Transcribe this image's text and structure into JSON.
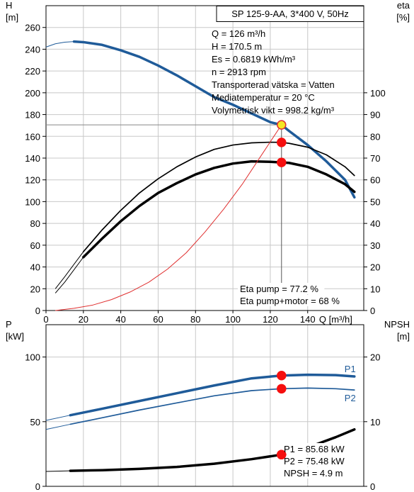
{
  "chart_data": [
    {
      "type": "line",
      "title": "SP 125-9-AA, 3*400 V, 50Hz",
      "xlabel": "Q [m³/h]",
      "xlim": [
        0,
        170
      ],
      "xticks": [
        0,
        20,
        40,
        60,
        80,
        100,
        120,
        140
      ],
      "y_left": {
        "label_line1": "H",
        "label_line2": "[m]",
        "lim": [
          0,
          280
        ],
        "ticks": [
          0,
          20,
          40,
          60,
          80,
          100,
          120,
          140,
          160,
          180,
          200,
          220,
          240,
          260
        ]
      },
      "y_right": {
        "label_line1": "eta",
        "label_line2": "[%]",
        "lim": [
          0,
          140
        ],
        "ticks": [
          0,
          10,
          20,
          30,
          40,
          50,
          60,
          70,
          80,
          90,
          100
        ]
      },
      "grid": true,
      "info_lines": [
        "Q = 126 m³/h",
        "H = 170.5 m",
        "Es = 0.6819 kWh/m³",
        "n = 2913 rpm",
        "Transporterad vätska = Vatten",
        "Mediatemperatur = 20 °C",
        "Volymetrisk vikt = 998.2 kg/m³"
      ],
      "annotations": [
        "Eta pump = 77.2 %",
        "Eta pump+motor = 68 %"
      ],
      "operating_point": {
        "x": 126,
        "y": 170.5
      },
      "series": [
        {
          "key": "head",
          "axis": "left",
          "color": "#1f5b99",
          "style": "thick",
          "x": [
            0,
            5,
            10,
            15,
            20,
            30,
            40,
            50,
            60,
            70,
            80,
            90,
            100,
            110,
            120,
            126,
            130,
            140,
            150,
            160,
            165
          ],
          "y": [
            242,
            245,
            246.5,
            247,
            246.5,
            244,
            239,
            233,
            225,
            216,
            206,
            196,
            189,
            181,
            173,
            170.5,
            165,
            152,
            137,
            120,
            104
          ],
          "thin_until": 13
        },
        {
          "key": "eta_pump",
          "axis": "right",
          "color": "#000000",
          "style": "medium",
          "x": [
            5,
            10,
            20,
            30,
            40,
            50,
            60,
            70,
            80,
            90,
            100,
            110,
            120,
            126,
            130,
            140,
            150,
            160,
            165
          ],
          "y": [
            10,
            15.5,
            27,
            37,
            46,
            54,
            60.5,
            66,
            70.5,
            74,
            76,
            77,
            77.3,
            77.2,
            76.8,
            75,
            71.5,
            66,
            62
          ],
          "thin_until": 13
        },
        {
          "key": "eta_total",
          "axis": "right",
          "color": "#000000",
          "style": "thick",
          "x": [
            5,
            10,
            20,
            30,
            40,
            50,
            60,
            70,
            80,
            90,
            100,
            110,
            120,
            126,
            130,
            140,
            150,
            160,
            165
          ],
          "y": [
            8,
            13,
            24.5,
            33,
            41,
            48,
            54,
            58.5,
            62.5,
            65.5,
            67.5,
            68.5,
            68.3,
            68,
            67.8,
            66,
            62.5,
            58,
            54.5
          ],
          "thin_until": 13
        },
        {
          "key": "system",
          "axis": "left",
          "color": "#e03030",
          "style": "thin",
          "x": [
            5,
            15,
            25,
            35,
            45,
            55,
            65,
            75,
            85,
            95,
            105,
            115,
            126
          ],
          "y": [
            0,
            2,
            5,
            10,
            17,
            26,
            38,
            53,
            72,
            93,
            116,
            142,
            170.5
          ],
          "thin_until": 0
        }
      ],
      "markers": [
        {
          "axis": "left",
          "x": 126,
          "y": 170.5,
          "fill": "#f5e623",
          "stroke": "#e03030"
        },
        {
          "axis": "right",
          "x": 126,
          "y": 77.2,
          "fill": "#f50f0f",
          "stroke": "#f50f0f"
        },
        {
          "axis": "right",
          "x": 126,
          "y": 68,
          "fill": "#f50f0f",
          "stroke": "#f50f0f"
        }
      ]
    },
    {
      "type": "line",
      "xlim": [
        0,
        170
      ],
      "y_left": {
        "label_line1": "P",
        "label_line2": "[kW]",
        "lim": [
          0,
          125
        ],
        "ticks": [
          0,
          50,
          100
        ]
      },
      "y_right": {
        "label_line1": "NPSH",
        "label_line2": "[m]",
        "lim": [
          0,
          25
        ],
        "ticks": [
          0,
          10,
          20
        ]
      },
      "grid": true,
      "info_lines": [
        "P1 = 85.68 kW",
        "P2 = 75.48 kW",
        "NPSH = 4.9 m"
      ],
      "series": [
        {
          "key": "P1",
          "name": "P1",
          "axis": "left",
          "color": "#1f5b99",
          "style": "thick",
          "x": [
            0,
            13,
            30,
            50,
            70,
            90,
            110,
            126,
            140,
            155,
            165
          ],
          "y": [
            51,
            55,
            60,
            66,
            72,
            78,
            83.5,
            85.68,
            86.3,
            86,
            85
          ],
          "thin_until": 13
        },
        {
          "key": "P2",
          "name": "P2",
          "axis": "left",
          "color": "#1f5b99",
          "style": "medium",
          "x": [
            0,
            13,
            30,
            50,
            70,
            90,
            110,
            126,
            140,
            155,
            165
          ],
          "y": [
            44,
            48,
            53,
            59,
            64.5,
            70,
            74,
            75.48,
            76,
            75.5,
            74.5
          ],
          "thin_until": 13
        },
        {
          "key": "NPSH",
          "axis": "right",
          "color": "#000000",
          "style": "thick",
          "x": [
            0,
            13,
            30,
            50,
            70,
            90,
            110,
            126,
            140,
            155,
            165
          ],
          "y": [
            2.3,
            2.4,
            2.5,
            2.7,
            3.0,
            3.5,
            4.2,
            4.9,
            6.0,
            7.6,
            8.8
          ],
          "thin_until": 13
        }
      ],
      "markers": [
        {
          "axis": "left",
          "x": 126,
          "y": 85.68,
          "fill": "#f50f0f",
          "stroke": "#f50f0f"
        },
        {
          "axis": "left",
          "x": 126,
          "y": 75.48,
          "fill": "#f50f0f",
          "stroke": "#f50f0f"
        },
        {
          "axis": "right",
          "x": 126,
          "y": 4.9,
          "fill": "#f50f0f",
          "stroke": "#f50f0f"
        }
      ]
    }
  ]
}
